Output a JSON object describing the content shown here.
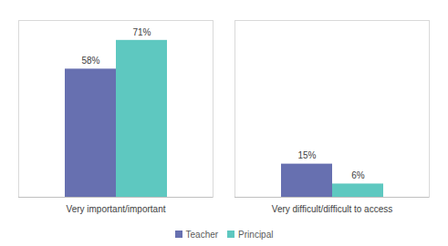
{
  "chart_data": {
    "type": "bar",
    "categories": [
      "Very important/important",
      "Very difficult/difficult to access"
    ],
    "series": [
      {
        "name": "Teacher",
        "color": "#6770b0",
        "values": [
          58,
          15
        ],
        "value_labels": [
          "58%",
          "15%"
        ]
      },
      {
        "name": "Principal",
        "color": "#5ec8c0",
        "values": [
          71,
          6
        ],
        "value_labels": [
          "71%",
          "6%"
        ]
      }
    ],
    "ylim": [
      0,
      80
    ],
    "data_labels": true,
    "tick_labels": "x",
    "legend": "bottom",
    "grid": false
  }
}
